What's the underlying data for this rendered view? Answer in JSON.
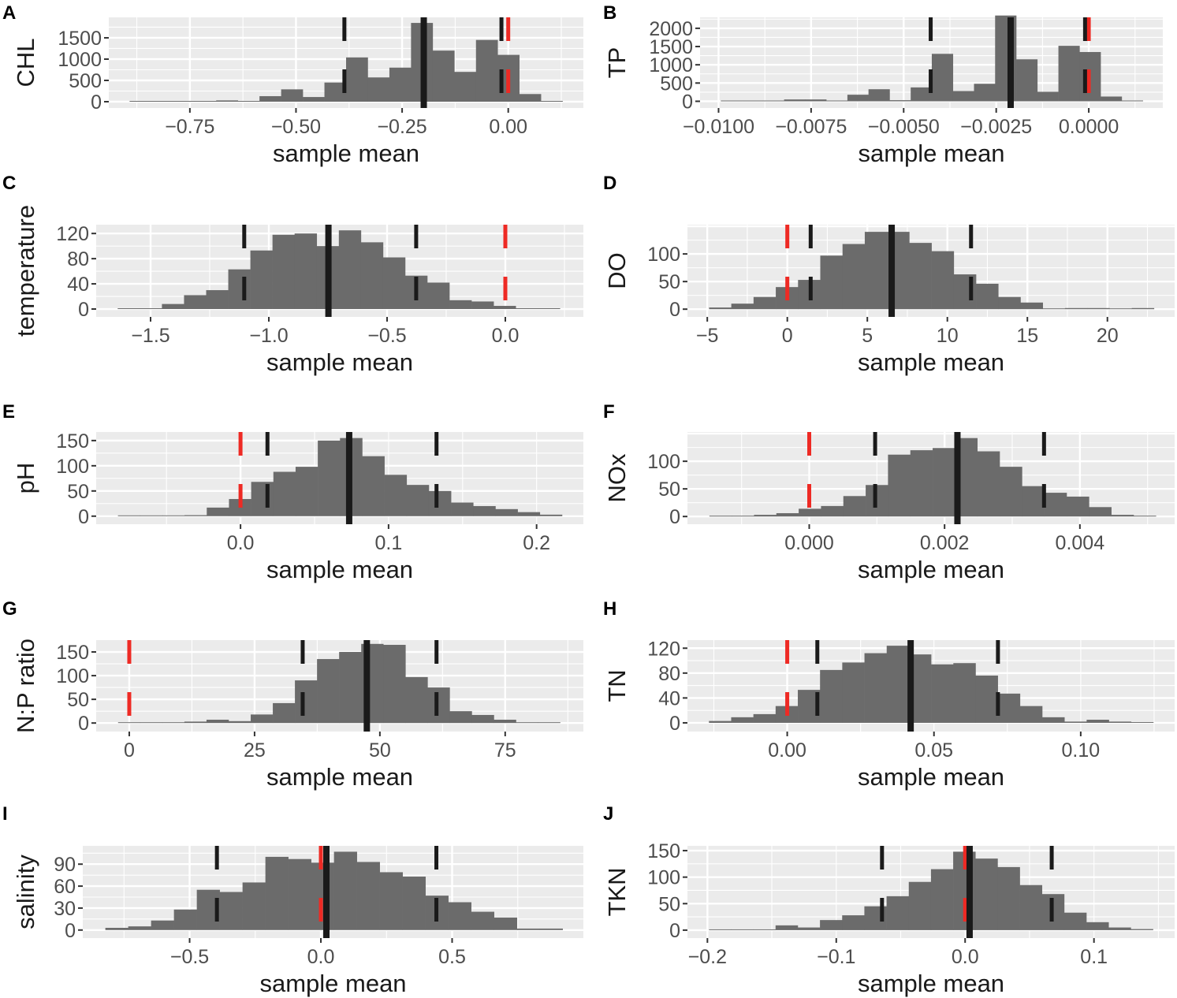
{
  "chart_data": [
    {
      "panel": "A",
      "type": "histogram",
      "ylabel": "CHL",
      "xlabel": "sample mean",
      "xlim": [
        -0.941,
        0.177
      ],
      "ylim": [
        -148,
        1981
      ],
      "xticks": [
        -0.75,
        -0.5,
        -0.25,
        0
      ],
      "xtick_labels": [
        "−0.75",
        "−0.50",
        "−0.25",
        "0.00"
      ],
      "yticks": [
        0,
        500,
        1000,
        1500
      ],
      "ytick_labels": [
        "0",
        "500",
        "1000",
        "1500"
      ],
      "bin_start": -0.892,
      "bin_width": 0.051,
      "counts": [
        5,
        3,
        3,
        15,
        30,
        5,
        130,
        290,
        110,
        450,
        1040,
        570,
        800,
        1850,
        1200,
        700,
        1450,
        1100,
        180,
        5
      ],
      "lines": {
        "lower": -0.386,
        "mean": -0.199,
        "upper": -0.016,
        "zero": 0
      }
    },
    {
      "panel": "B",
      "type": "histogram",
      "ylabel": "TP",
      "xlabel": "sample mean",
      "xlim": [
        -0.0105,
        0.002
      ],
      "ylim": [
        -184,
        2300
      ],
      "xticks": [
        -0.01,
        -0.0075,
        -0.005,
        -0.0025,
        0
      ],
      "xtick_labels": [
        "−0.0100",
        "−0.0075",
        "−0.0050",
        "−0.0025",
        "0.0000"
      ],
      "yticks": [
        0,
        500,
        1000,
        1500,
        2000
      ],
      "ytick_labels": [
        "0",
        "500",
        "1000",
        "1500",
        "2000"
      ],
      "bin_start": -0.00994,
      "bin_width": 0.00057,
      "counts": [
        20,
        5,
        5,
        50,
        50,
        5,
        180,
        330,
        30,
        380,
        1300,
        280,
        480,
        2350,
        1150,
        260,
        1520,
        1350,
        130,
        10
      ],
      "lines": {
        "lower": -0.00427,
        "mean": -0.00211,
        "upper": -0.0001,
        "zero": 0
      }
    },
    {
      "panel": "C",
      "type": "histogram",
      "ylabel": "temperature",
      "xlabel": "sample mean",
      "xlim": [
        -1.73,
        0.33
      ],
      "ylim": [
        -12.5,
        134
      ],
      "xticks": [
        -1.5,
        -1,
        -0.5,
        0
      ],
      "xtick_labels": [
        "−1.5",
        "−1.0",
        "−0.5",
        "0.0"
      ],
      "yticks": [
        0,
        40,
        80,
        120
      ],
      "ytick_labels": [
        "0",
        "40",
        "80",
        "120"
      ],
      "bin_start": -1.639,
      "bin_width": 0.0935,
      "counts": [
        1,
        1,
        8,
        22,
        30,
        63,
        93,
        118,
        120,
        100,
        125,
        106,
        82,
        53,
        42,
        14,
        12,
        5,
        1,
        1
      ],
      "lines": {
        "lower": -1.104,
        "mean": -0.748,
        "upper": -0.377,
        "zero": 0
      }
    },
    {
      "panel": "D",
      "type": "histogram",
      "ylabel": "DO",
      "xlabel": "sample mean",
      "xlim": [
        -6.24,
        24.2
      ],
      "ylim": [
        -14,
        153
      ],
      "xticks": [
        -5,
        0,
        5,
        10,
        15,
        20
      ],
      "xtick_labels": [
        "−5",
        "0",
        "5",
        "10",
        "15",
        "20"
      ],
      "yticks": [
        0,
        50,
        100
      ],
      "ytick_labels": [
        "0",
        "50",
        "100"
      ],
      "bin_start": -4.89,
      "bin_width": 1.39,
      "counts": [
        3,
        10,
        22,
        40,
        53,
        97,
        118,
        140,
        140,
        120,
        105,
        63,
        46,
        22,
        12,
        1,
        2,
        2,
        1,
        2
      ],
      "lines": {
        "lower": 1.46,
        "mean": 6.52,
        "upper": 11.48,
        "zero": 0
      }
    },
    {
      "panel": "E",
      "type": "histogram",
      "ylabel": "pH",
      "xlabel": "sample mean",
      "xlim": [
        -0.0975,
        0.2316
      ],
      "ylim": [
        -16,
        167
      ],
      "xticks": [
        0,
        0.1,
        0.2
      ],
      "xtick_labels": [
        "0.0",
        "0.1",
        "0.2"
      ],
      "yticks": [
        0,
        50,
        100,
        150
      ],
      "ytick_labels": [
        "0",
        "50",
        "100",
        "150"
      ],
      "bin_start": -0.0828,
      "bin_width": 0.015,
      "counts": [
        1,
        1,
        1,
        2,
        17,
        34,
        68,
        88,
        98,
        150,
        155,
        119,
        82,
        62,
        50,
        27,
        20,
        14,
        8,
        3
      ],
      "lines": {
        "lower": 0.0182,
        "mean": 0.0734,
        "upper": 0.1324,
        "zero": 0
      }
    },
    {
      "panel": "F",
      "type": "histogram",
      "ylabel": "NOx",
      "xlabel": "sample mean",
      "xlim": [
        -0.0018,
        0.0054
      ],
      "ylim": [
        -14,
        153
      ],
      "xticks": [
        0,
        0.002,
        0.004
      ],
      "xtick_labels": [
        "0.000",
        "0.002",
        "0.004"
      ],
      "yticks": [
        0,
        50,
        100
      ],
      "ytick_labels": [
        "0",
        "50",
        "100"
      ],
      "bin_start": -0.001476,
      "bin_width": 0.00033,
      "counts": [
        1,
        1,
        3,
        6,
        14,
        19,
        37,
        57,
        112,
        120,
        124,
        142,
        118,
        90,
        55,
        43,
        36,
        17,
        3,
        1
      ],
      "lines": {
        "lower": 0.000974,
        "mean": 0.00219,
        "upper": 0.00347,
        "zero": 0
      }
    },
    {
      "panel": "G",
      "type": "histogram",
      "ylabel": "N:P ratio",
      "xlabel": "sample mean",
      "xlim": [
        -6.6,
        90.6
      ],
      "ylim": [
        -18,
        175
      ],
      "xticks": [
        0,
        25,
        50,
        75
      ],
      "xtick_labels": [
        "0",
        "25",
        "50",
        "75"
      ],
      "yticks": [
        0,
        50,
        100,
        150
      ],
      "ytick_labels": [
        "0",
        "50",
        "100",
        "150"
      ],
      "bin_start": -2.23,
      "bin_width": 4.41,
      "counts": [
        1,
        1,
        1,
        3,
        7,
        4,
        18,
        42,
        90,
        135,
        150,
        167,
        165,
        97,
        75,
        25,
        17,
        7,
        1,
        1
      ],
      "lines": {
        "lower": 34.6,
        "mean": 47.4,
        "upper": 61.3,
        "zero": 0
      }
    },
    {
      "panel": "H",
      "type": "histogram",
      "ylabel": "TN",
      "xlabel": "sample mean",
      "xlim": [
        -0.034,
        0.132
      ],
      "ylim": [
        -14,
        133
      ],
      "xticks": [
        0,
        0.05,
        0.1
      ],
      "xtick_labels": [
        "0.00",
        "0.05",
        "0.10"
      ],
      "yticks": [
        0,
        40,
        80,
        120
      ],
      "ytick_labels": [
        "0",
        "40",
        "80",
        "120"
      ],
      "bin_start": -0.02667,
      "bin_width": 0.00757,
      "counts": [
        3,
        9,
        14,
        27,
        53,
        85,
        97,
        112,
        124,
        110,
        94,
        96,
        76,
        47,
        27,
        9,
        2,
        5,
        2,
        1
      ],
      "lines": {
        "lower": 0.01026,
        "mean": 0.04205,
        "upper": 0.0718,
        "zero": 0
      }
    },
    {
      "panel": "I",
      "type": "histogram",
      "ylabel": "salinity",
      "xlabel": "sample mean",
      "xlim": [
        -0.907,
        1.0
      ],
      "ylim": [
        -11,
        115
      ],
      "xticks": [
        -0.5,
        0,
        0.5
      ],
      "xtick_labels": [
        "−0.5",
        "0.0",
        "0.5"
      ],
      "yticks": [
        0,
        30,
        60,
        90
      ],
      "ytick_labels": [
        "0",
        "30",
        "60",
        "90"
      ],
      "bin_start": -0.821,
      "bin_width": 0.0871,
      "counts": [
        3,
        5,
        13,
        28,
        55,
        52,
        65,
        100,
        97,
        92,
        107,
        93,
        79,
        73,
        47,
        38,
        25,
        17,
        2,
        2
      ],
      "lines": {
        "lower": -0.396,
        "mean": 0.021,
        "upper": 0.44,
        "zero": 0
      }
    },
    {
      "panel": "J",
      "type": "histogram",
      "ylabel": "TKN",
      "xlabel": "sample mean",
      "xlim": [
        -0.2155,
        0.1626
      ],
      "ylim": [
        -15,
        159
      ],
      "xticks": [
        -0.2,
        -0.1,
        0,
        0.1
      ],
      "xtick_labels": [
        "−0.2",
        "−0.1",
        "0.0",
        "0.1"
      ],
      "yticks": [
        0,
        50,
        100,
        150
      ],
      "ytick_labels": [
        "0",
        "50",
        "100",
        "150"
      ],
      "bin_start": -0.1988,
      "bin_width": 0.01723,
      "counts": [
        1,
        1,
        1,
        9,
        5,
        19,
        28,
        45,
        64,
        91,
        115,
        148,
        135,
        119,
        85,
        68,
        33,
        15,
        5,
        2
      ],
      "lines": {
        "lower": -0.0645,
        "mean": 0.0035,
        "upper": 0.0672,
        "zero": 0
      }
    }
  ],
  "colors": {
    "panel_bg": "#ebebeb",
    "grid": "#ffffff",
    "bar": "#6b6b6b",
    "ci_line": "#1a1a1a",
    "mean_line": "#1a1a1a",
    "zero_line": "#ee2a24",
    "tick_text": "#4d4d4d"
  }
}
